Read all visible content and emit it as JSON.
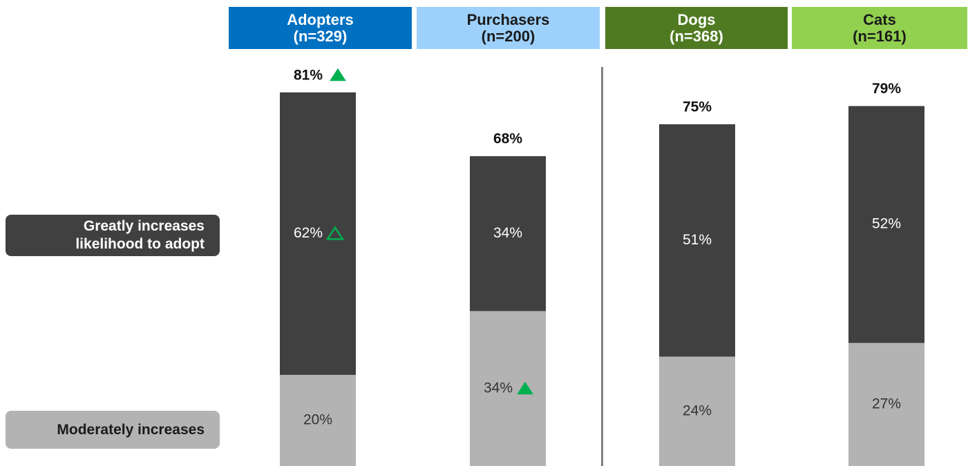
{
  "chart_data": {
    "type": "stacked_bar",
    "categories": [
      "Adopters",
      "Purchasers",
      "Dogs",
      "Cats"
    ],
    "category_notes": [
      "(n=329)",
      "(n=200)",
      "(n=368)",
      "(n=161)"
    ],
    "category_colors": [
      "#0070c0",
      "#9dd1fb",
      "#4f7a21",
      "#92d050"
    ],
    "category_text_colors": [
      "#ffffff",
      "#1a1a1a",
      "#ffffff",
      "#1a1a1a"
    ],
    "series": [
      {
        "name": "Moderately increases",
        "color": "#b3b3b3",
        "text_color": "#333333",
        "values": [
          20,
          34,
          24,
          27
        ],
        "significant": [
          false,
          true,
          false,
          false
        ]
      },
      {
        "name": "Greatly increases likelihood to adopt",
        "color": "#404040",
        "text_color": "#ffffff",
        "values": [
          62,
          34,
          51,
          52
        ],
        "significant": [
          true,
          false,
          false,
          false
        ]
      }
    ],
    "totals": [
      81,
      68,
      75,
      79
    ],
    "totals_significant": [
      true,
      false,
      false,
      false
    ],
    "value_labels": {
      "series": [
        [
          "20%",
          "34%",
          "24%",
          "27%"
        ],
        [
          "62%",
          "34%",
          "51%",
          "52%"
        ]
      ],
      "totals": [
        "81%",
        "68%",
        "75%",
        "79%"
      ]
    },
    "significance_color": "#00b050",
    "divider_after": 1
  }
}
